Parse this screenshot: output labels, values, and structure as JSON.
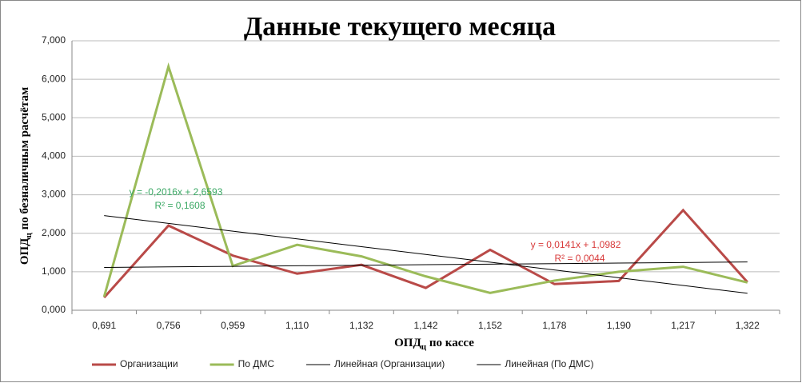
{
  "chart_data": {
    "type": "line",
    "title": "Данные текущего месяца",
    "x_label": {
      "main": "ОПД",
      "sub": "ц",
      "rest": " по кассе"
    },
    "y_label": {
      "main": "ОПД",
      "sub": "ц",
      "rest": " по безналичным расчётам"
    },
    "categories": [
      "0,691",
      "0,756",
      "0,959",
      "1,110",
      "1,132",
      "1,142",
      "1,152",
      "1,178",
      "1,190",
      "1,217",
      "1,322"
    ],
    "series": [
      {
        "name": "Организации",
        "color": "#b94a48",
        "width": 3,
        "values": [
          0.33,
          2.2,
          1.42,
          0.95,
          1.18,
          0.58,
          1.57,
          0.68,
          0.76,
          2.6,
          0.73
        ]
      },
      {
        "name": "По ДМС",
        "color": "#9bbb59",
        "width": 3,
        "values": [
          0.35,
          6.33,
          1.15,
          1.7,
          1.4,
          0.88,
          0.45,
          0.77,
          1.0,
          1.13,
          0.72
        ]
      },
      {
        "name": "Линейная (Организации)",
        "color": "#000000",
        "width": 1,
        "values": [
          1.112,
          1.126,
          1.141,
          1.155,
          1.169,
          1.183,
          1.197,
          1.211,
          1.225,
          1.239,
          1.253
        ]
      },
      {
        "name": "Линейная (По ДМС)",
        "color": "#000000",
        "width": 1,
        "values": [
          2.458,
          2.256,
          2.054,
          1.853,
          1.651,
          1.45,
          1.248,
          1.047,
          0.845,
          0.643,
          0.442
        ]
      }
    ],
    "annotations": [
      {
        "lines": [
          "y = -0,2016x + 2,6593",
          "R² = 0,1608"
        ],
        "color": "#3aa864"
      },
      {
        "lines": [
          "y = 0,0141x + 1,0982",
          "R² = 0,0044"
        ],
        "color": "#d83a3a"
      }
    ],
    "ylim": [
      0,
      7
    ],
    "yticks": [
      {
        "value": 0,
        "label": "0,000"
      },
      {
        "value": 1,
        "label": "1,000"
      },
      {
        "value": 2,
        "label": "2,000"
      },
      {
        "value": 3,
        "label": "3,000"
      },
      {
        "value": 4,
        "label": "4,000"
      },
      {
        "value": 5,
        "label": "5,000"
      },
      {
        "value": 6,
        "label": "6,000"
      },
      {
        "value": 7,
        "label": "7,000"
      }
    ],
    "grid": true
  }
}
